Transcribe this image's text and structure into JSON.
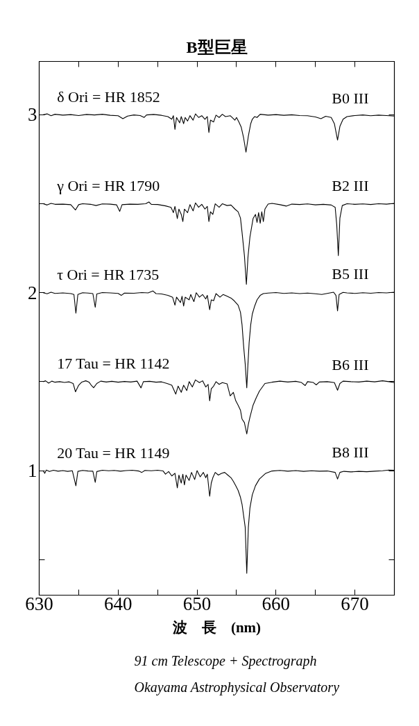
{
  "chart_data": {
    "type": "line",
    "title": "B型巨星",
    "xlabel": "波　長　(nm)",
    "xlim": [
      630,
      675
    ],
    "xticks": [
      630,
      {
        "value": 635,
        "label": null
      },
      640,
      {
        "value": 645,
        "label": null
      },
      650,
      {
        "value": 655,
        "label": null
      },
      660,
      {
        "value": 665,
        "label": null
      },
      670
    ],
    "ylim": [
      0.3,
      3.3
    ],
    "yticks": [
      {
        "value": 0.5,
        "label": null
      },
      1,
      {
        "value": 1.5,
        "label": null
      },
      2,
      {
        "value": 2.5,
        "label": null
      },
      3
    ],
    "grid": false,
    "line_style": "solid",
    "series": [
      {
        "name": "δ Ori = HR 1852",
        "color": "#000000",
        "x": [
          630.5,
          631.0,
          631.5,
          632.0,
          633.0,
          634.0,
          635.0,
          636.0,
          637.0,
          638.0,
          639.0,
          640.0,
          640.6,
          641.2,
          642.0,
          642.8,
          643.3,
          643.6,
          644.5,
          645.5,
          646.3,
          646.8,
          647.0,
          647.2,
          647.4,
          647.8,
          648.0,
          648.3,
          648.5,
          648.8,
          649.1,
          649.5,
          649.8,
          650.2,
          650.6,
          651.0,
          651.3,
          651.5,
          651.7,
          652.1,
          652.4,
          652.8,
          653.2,
          653.6,
          654.2,
          654.8,
          655.0,
          655.3,
          655.6,
          655.9,
          656.2,
          656.5,
          656.8,
          657.0,
          657.3,
          657.6,
          658.0,
          659.0,
          660.0,
          661.0,
          662.0,
          663.0,
          664.0,
          665.0,
          665.7,
          666.3,
          667.0,
          667.4,
          667.8,
          668.1,
          668.5,
          669.0,
          670.0,
          671.0,
          672.0,
          673.0,
          674.0,
          675.0
        ],
        "values": [
          3.0,
          3.005,
          2.995,
          3.003,
          2.998,
          3.001,
          2.996,
          3.002,
          2.999,
          3.003,
          2.997,
          2.995,
          2.978,
          2.993,
          2.999,
          2.996,
          2.985,
          2.999,
          3.002,
          2.997,
          2.99,
          2.975,
          2.995,
          2.918,
          2.985,
          2.955,
          2.99,
          2.95,
          2.985,
          2.965,
          2.995,
          2.97,
          3.005,
          2.985,
          2.995,
          2.975,
          2.99,
          2.9,
          2.97,
          2.96,
          2.998,
          2.985,
          3.003,
          2.99,
          2.995,
          2.97,
          2.985,
          2.96,
          2.93,
          2.87,
          2.79,
          2.88,
          2.95,
          2.975,
          2.99,
          2.985,
          3.003,
          2.998,
          3.001,
          2.997,
          3.0,
          2.996,
          2.995,
          2.988,
          2.978,
          2.992,
          2.985,
          2.95,
          2.858,
          2.935,
          2.975,
          2.99,
          2.996,
          2.999,
          2.995,
          2.998,
          2.996,
          2.993
        ]
      },
      {
        "name": "γ Ori = HR 1790",
        "color": "#000000",
        "x": [
          630.5,
          631.0,
          631.5,
          632.0,
          633.0,
          634.0,
          634.6,
          635.0,
          635.5,
          636.5,
          637.2,
          638.0,
          639.0,
          639.8,
          640.2,
          640.5,
          641.5,
          642.5,
          643.5,
          643.9,
          644.2,
          645.0,
          646.0,
          646.7,
          647.0,
          647.2,
          647.5,
          647.7,
          648.0,
          648.2,
          648.4,
          648.8,
          649.1,
          649.5,
          649.8,
          650.2,
          650.6,
          651.0,
          651.3,
          651.5,
          651.7,
          652.0,
          652.3,
          652.8,
          653.2,
          653.8,
          654.3,
          654.8,
          655.2,
          655.5,
          655.7,
          656.0,
          656.25,
          656.45,
          656.7,
          657.1,
          657.4,
          657.6,
          657.8,
          658.0,
          658.2,
          658.4,
          658.6,
          659.0,
          659.5,
          660.5,
          661.3,
          662.0,
          663.0,
          664.0,
          665.0,
          666.0,
          667.0,
          667.5,
          667.7,
          667.9,
          668.1,
          668.4,
          669.0,
          670.0,
          671.0,
          672.0,
          673.0,
          674.0,
          675.0
        ],
        "values": [
          2.5,
          2.493,
          2.502,
          2.497,
          2.498,
          2.495,
          2.465,
          2.495,
          2.5,
          2.497,
          2.49,
          2.499,
          2.498,
          2.494,
          2.457,
          2.495,
          2.498,
          2.497,
          2.5,
          2.51,
          2.497,
          2.496,
          2.488,
          2.48,
          2.45,
          2.485,
          2.417,
          2.47,
          2.44,
          2.4,
          2.47,
          2.45,
          2.495,
          2.46,
          2.505,
          2.48,
          2.497,
          2.47,
          2.485,
          2.4,
          2.455,
          2.44,
          2.5,
          2.48,
          2.5,
          2.49,
          2.493,
          2.47,
          2.455,
          2.42,
          2.34,
          2.209,
          2.047,
          2.2,
          2.313,
          2.417,
          2.44,
          2.395,
          2.45,
          2.39,
          2.455,
          2.4,
          2.47,
          2.498,
          2.502,
          2.495,
          2.487,
          2.498,
          2.496,
          2.499,
          2.494,
          2.497,
          2.493,
          2.48,
          2.38,
          2.209,
          2.42,
          2.49,
          2.5,
          2.497,
          2.499,
          2.496,
          2.5,
          2.498,
          2.502
        ]
      },
      {
        "name": "τ Ori = HR 1735",
        "color": "#000000",
        "x": [
          630.5,
          631.0,
          631.5,
          632.0,
          633.0,
          634.0,
          634.4,
          634.65,
          634.9,
          635.5,
          636.2,
          636.8,
          637.1,
          637.3,
          638.0,
          639.0,
          640.0,
          640.4,
          640.8,
          642.0,
          643.0,
          643.8,
          644.4,
          644.8,
          645.5,
          646.3,
          646.9,
          647.2,
          647.4,
          647.9,
          648.1,
          648.3,
          648.5,
          649.0,
          649.2,
          649.6,
          649.9,
          650.3,
          650.7,
          651.1,
          651.3,
          651.6,
          651.8,
          652.1,
          652.4,
          652.9,
          653.3,
          653.8,
          654.3,
          654.7,
          655.0,
          655.2,
          655.5,
          655.7,
          655.9,
          656.1,
          656.3,
          656.45,
          656.6,
          656.8,
          657.0,
          657.3,
          657.6,
          658.0,
          658.4,
          659.0,
          660.0,
          661.0,
          662.0,
          663.0,
          664.0,
          665.0,
          665.8,
          666.5,
          667.3,
          667.6,
          667.8,
          668.0,
          668.5,
          669.0,
          670.0,
          671.0,
          672.0,
          673.0,
          674.0,
          675.0
        ],
        "values": [
          2.0,
          1.994,
          2.003,
          1.996,
          1.999,
          1.995,
          1.99,
          1.885,
          1.99,
          2.0,
          1.998,
          1.995,
          1.918,
          1.993,
          2.001,
          1.999,
          1.996,
          1.985,
          1.998,
          1.997,
          2.001,
          1.999,
          2.01,
          1.995,
          1.993,
          1.985,
          1.975,
          1.93,
          1.975,
          1.945,
          1.98,
          1.925,
          1.975,
          1.96,
          1.99,
          1.95,
          2.0,
          1.975,
          1.99,
          1.965,
          1.985,
          1.905,
          1.96,
          1.955,
          1.995,
          1.975,
          1.99,
          1.98,
          1.97,
          1.955,
          1.94,
          1.93,
          1.89,
          1.82,
          1.7,
          1.6,
          1.466,
          1.6,
          1.72,
          1.82,
          1.88,
          1.925,
          1.96,
          1.985,
          1.995,
          1.998,
          2.001,
          1.996,
          1.999,
          1.995,
          1.998,
          1.994,
          1.99,
          1.996,
          2.003,
          1.985,
          1.898,
          1.99,
          2.002,
          1.999,
          1.996,
          2.0,
          1.997,
          2.001,
          1.999,
          2.003
        ]
      },
      {
        "name": "17 Tau = HR 1142",
        "color": "#000000",
        "x": [
          630.5,
          630.8,
          631.2,
          631.6,
          632.0,
          632.6,
          633.2,
          633.8,
          634.3,
          634.6,
          635.0,
          635.4,
          635.9,
          636.3,
          636.6,
          636.9,
          637.3,
          637.8,
          638.5,
          639.2,
          640.0,
          640.8,
          641.6,
          642.4,
          642.9,
          643.2,
          644.0,
          644.8,
          645.5,
          646.2,
          646.8,
          647.3,
          647.6,
          648.0,
          648.3,
          648.7,
          649.0,
          649.4,
          649.8,
          650.3,
          650.7,
          651.1,
          651.4,
          651.6,
          651.8,
          652.1,
          652.4,
          652.8,
          653.2,
          653.8,
          654.2,
          654.6,
          654.9,
          655.2,
          655.5,
          655.7,
          656.0,
          656.3,
          656.5,
          656.7,
          657.1,
          657.5,
          657.9,
          658.6,
          659.5,
          660.5,
          661.5,
          662.5,
          663.2,
          663.7,
          664.0,
          664.7,
          665.1,
          665.5,
          666.5,
          667.4,
          667.8,
          668.1,
          668.5,
          669.5,
          670.5,
          671.5,
          672.5,
          673.5,
          674.3,
          675.0
        ],
        "values": [
          1.5,
          1.505,
          1.492,
          1.503,
          1.497,
          1.5,
          1.496,
          1.499,
          1.49,
          1.443,
          1.48,
          1.498,
          1.505,
          1.498,
          1.48,
          1.466,
          1.49,
          1.503,
          1.498,
          1.502,
          1.497,
          1.501,
          1.498,
          1.503,
          1.465,
          1.5,
          1.502,
          1.497,
          1.499,
          1.49,
          1.48,
          1.43,
          1.475,
          1.44,
          1.48,
          1.45,
          1.5,
          1.47,
          1.51,
          1.495,
          1.505,
          1.47,
          1.485,
          1.393,
          1.46,
          1.475,
          1.5,
          1.485,
          1.495,
          1.488,
          1.42,
          1.44,
          1.393,
          1.368,
          1.34,
          1.29,
          1.27,
          1.206,
          1.26,
          1.3,
          1.368,
          1.41,
          1.447,
          1.49,
          1.497,
          1.503,
          1.498,
          1.502,
          1.496,
          1.478,
          1.5,
          1.496,
          1.482,
          1.498,
          1.5,
          1.495,
          1.452,
          1.49,
          1.503,
          1.5,
          1.498,
          1.503,
          1.499,
          1.505,
          1.5,
          1.495
        ]
      },
      {
        "name": "20 Tau = HR 1149",
        "color": "#000000",
        "x": [
          630.5,
          630.7,
          630.9,
          631.3,
          631.8,
          632.4,
          633.0,
          633.6,
          634.2,
          634.65,
          634.9,
          635.5,
          636.2,
          636.8,
          637.1,
          637.3,
          638.0,
          638.8,
          639.5,
          640.3,
          641.0,
          641.8,
          642.6,
          643.0,
          643.4,
          644.2,
          645.0,
          645.7,
          646.0,
          646.4,
          646.8,
          647.2,
          647.5,
          647.7,
          648.0,
          648.2,
          648.4,
          648.6,
          649.0,
          649.3,
          649.7,
          650.0,
          650.4,
          650.8,
          651.1,
          651.3,
          651.6,
          651.8,
          652.0,
          652.3,
          652.7,
          653.1,
          653.5,
          653.9,
          654.3,
          654.6,
          654.9,
          655.2,
          655.5,
          655.7,
          656.1,
          656.3,
          656.5,
          656.7,
          657.0,
          657.4,
          657.9,
          658.7,
          659.5,
          660.5,
          661.5,
          662.5,
          663.5,
          664.5,
          665.5,
          666.5,
          667.5,
          667.8,
          668.1,
          668.6,
          669.5,
          670.5,
          671.5,
          672.5,
          673.5,
          674.3,
          675.0
        ],
        "values": [
          1.0,
          0.985,
          1.003,
          0.995,
          1.002,
          0.997,
          1.0,
          0.996,
          0.999,
          0.915,
          0.996,
          1.001,
          0.998,
          0.997,
          0.934,
          0.995,
          1.002,
          0.999,
          1.001,
          0.997,
          1.0,
          1.002,
          0.998,
          0.99,
          1.001,
          0.999,
          1.002,
          0.998,
          0.98,
          0.995,
          0.97,
          0.985,
          0.903,
          0.975,
          0.93,
          0.98,
          0.92,
          0.975,
          0.945,
          0.99,
          0.95,
          1.0,
          0.965,
          0.99,
          0.96,
          0.98,
          0.856,
          0.93,
          0.96,
          0.99,
          0.975,
          0.985,
          0.99,
          0.975,
          0.96,
          0.94,
          0.915,
          0.889,
          0.85,
          0.811,
          0.682,
          0.423,
          0.682,
          0.79,
          0.864,
          0.915,
          0.953,
          0.985,
          0.998,
          1.001,
          0.997,
          1.0,
          0.996,
          0.999,
          0.997,
          0.998,
          0.99,
          0.953,
          0.99,
          0.996,
          0.993,
          0.996,
          0.994,
          0.997,
          0.999,
          1.003,
          1.002
        ]
      }
    ],
    "annotations": [
      "B0 III",
      "B2 III",
      "B5 III",
      "B6 III",
      "B8 III",
      "91 cm Telescope + Spectrograph",
      "Okayama Astrophysical Observatory"
    ]
  }
}
